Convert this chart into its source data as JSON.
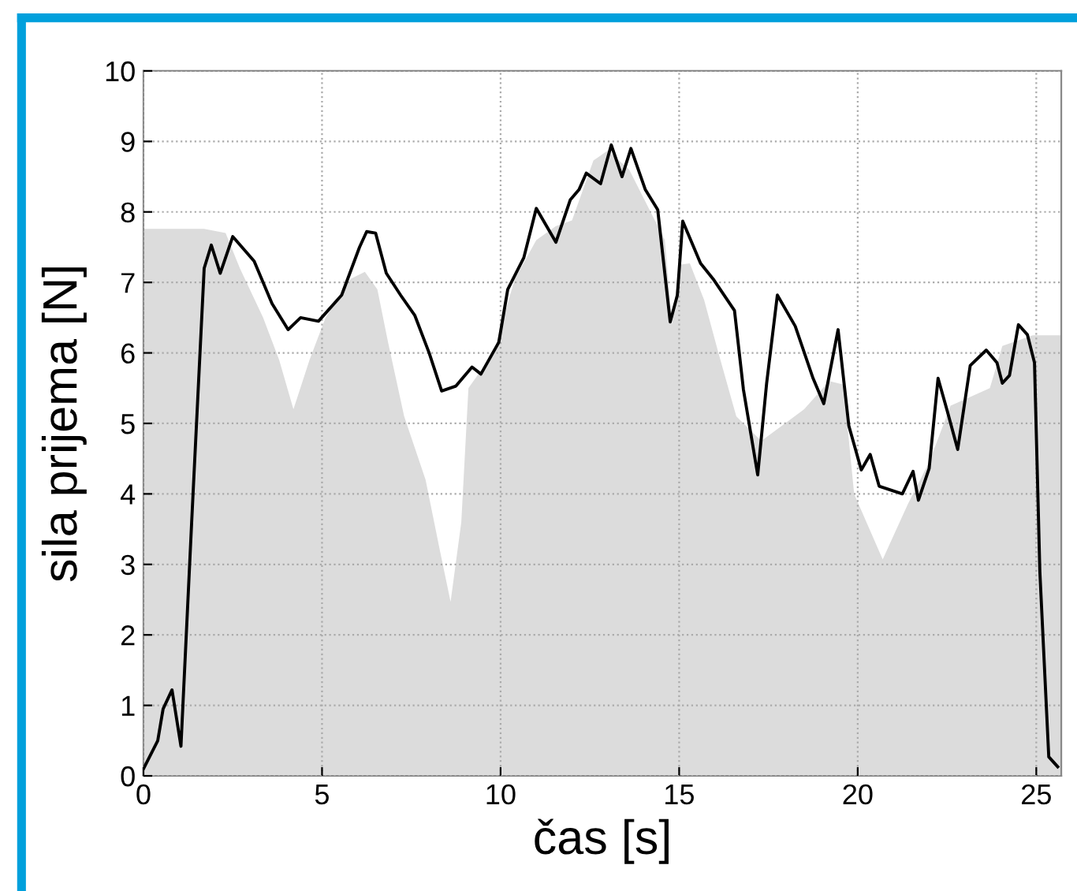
{
  "chart_data": {
    "type": "line",
    "xlabel": "čas [s]",
    "ylabel": "sila prijema [N]",
    "xlim": [
      0,
      25.7
    ],
    "ylim": [
      0,
      10
    ],
    "xticks": [
      0,
      5,
      10,
      15,
      20,
      25
    ],
    "yticks": [
      0,
      1,
      2,
      3,
      4,
      5,
      6,
      7,
      8,
      9,
      10
    ],
    "grid": true,
    "line_style": "solid",
    "marker": "none",
    "series": [
      {
        "type": "area",
        "color": "#dcdcdc",
        "x": [
          0,
          1.7,
          2.3,
          2.7,
          3.35,
          3.8,
          4.2,
          4.65,
          5.1,
          5.8,
          6.2,
          6.55,
          6.85,
          7.3,
          7.9,
          8.3,
          8.6,
          8.9,
          9.1,
          9.8,
          10.4,
          11.0,
          11.55,
          12.0,
          12.6,
          13.0,
          13.6,
          14.2,
          14.6,
          14.8,
          15.0,
          15.3,
          15.7,
          16.1,
          16.6,
          17.3,
          18.5,
          19.2,
          19.6,
          19.9,
          20.7,
          21.4,
          22.0,
          22.6,
          23.7,
          24.05,
          24.9,
          25.7
        ],
        "values": [
          7.76,
          7.76,
          7.7,
          7.2,
          6.5,
          5.9,
          5.2,
          5.9,
          6.5,
          7.05,
          7.15,
          6.9,
          6.15,
          5.1,
          4.2,
          3.2,
          2.47,
          3.6,
          5.5,
          6.0,
          7.05,
          7.6,
          7.8,
          7.88,
          8.73,
          8.87,
          8.6,
          8.0,
          7.6,
          6.4,
          7.25,
          7.27,
          6.75,
          6.0,
          5.1,
          4.75,
          5.2,
          5.6,
          5.55,
          4.0,
          3.07,
          3.85,
          4.45,
          5.25,
          5.5,
          6.1,
          6.25,
          6.25
        ]
      },
      {
        "color": "#000000",
        "x": [
          0,
          0.4,
          0.55,
          0.8,
          1.05,
          1.35,
          1.7,
          1.9,
          2.15,
          2.5,
          3.1,
          3.6,
          4.05,
          4.4,
          4.9,
          5.55,
          6.05,
          6.25,
          6.5,
          6.8,
          7.2,
          7.6,
          8.0,
          8.35,
          8.75,
          9.2,
          9.45,
          9.95,
          10.2,
          10.65,
          11.0,
          11.55,
          11.95,
          12.2,
          12.4,
          12.8,
          13.1,
          13.4,
          13.65,
          14.05,
          14.4,
          14.75,
          14.95,
          15.1,
          15.6,
          15.95,
          16.55,
          16.8,
          17.2,
          17.45,
          17.75,
          18.25,
          18.75,
          19.05,
          19.45,
          19.75,
          20.1,
          20.35,
          20.6,
          21.25,
          21.55,
          21.7,
          22.0,
          22.25,
          22.5,
          22.8,
          23.15,
          23.6,
          23.9,
          24.05,
          24.25,
          24.5,
          24.75,
          24.95,
          25.1,
          25.35,
          25.6
        ],
        "values": [
          0.1,
          0.5,
          0.95,
          1.22,
          0.42,
          3.6,
          7.2,
          7.53,
          7.13,
          7.65,
          7.3,
          6.7,
          6.33,
          6.5,
          6.45,
          6.82,
          7.5,
          7.72,
          7.7,
          7.13,
          6.82,
          6.53,
          6.0,
          5.46,
          5.53,
          5.8,
          5.7,
          6.15,
          6.9,
          7.35,
          8.05,
          7.57,
          8.17,
          8.32,
          8.55,
          8.4,
          8.95,
          8.5,
          8.9,
          8.32,
          8.03,
          6.44,
          6.82,
          7.87,
          7.27,
          7.05,
          6.6,
          5.48,
          4.27,
          5.57,
          6.82,
          6.38,
          5.64,
          5.28,
          6.33,
          4.97,
          4.34,
          4.56,
          4.11,
          4.0,
          4.32,
          3.91,
          4.36,
          5.64,
          5.19,
          4.63,
          5.82,
          6.04,
          5.86,
          5.57,
          5.68,
          6.4,
          6.26,
          5.86,
          2.9,
          0.27,
          0.13
        ]
      }
    ]
  }
}
